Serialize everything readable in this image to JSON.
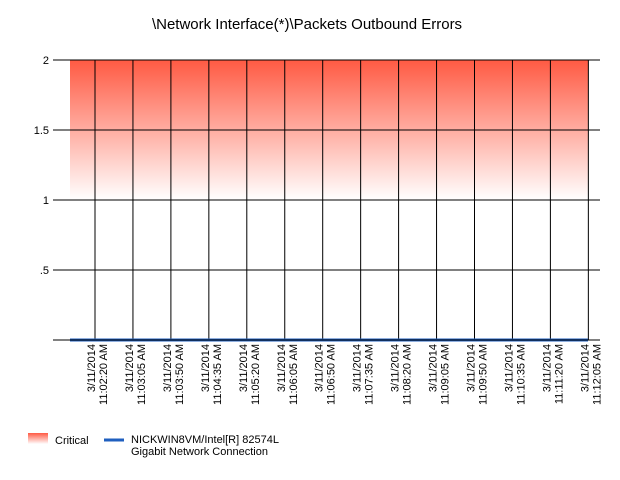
{
  "chart_data": {
    "type": "area",
    "title": "\\Network Interface(*)\\Packets Outbound Errors",
    "xlabel": "",
    "ylabel": "",
    "ylim": [
      0,
      2
    ],
    "y_ticks": [
      {
        "value": 2,
        "label": "2"
      },
      {
        "value": 1.5,
        "label": "1.5"
      },
      {
        "value": 1,
        "label": "1"
      },
      {
        "value": 0.5,
        "label": ".5"
      },
      {
        "value": 0,
        "label": ""
      }
    ],
    "categories": [
      "3/11/2014 11:02:20 AM",
      "3/11/2014 11:03:05 AM",
      "3/11/2014 11:03:50 AM",
      "3/11/2014 11:04:35 AM",
      "3/11/2014 11:05:20 AM",
      "3/11/2014 11:06:05 AM",
      "3/11/2014 11:06:50 AM",
      "3/11/2014 11:07:35 AM",
      "3/11/2014 11:08:20 AM",
      "3/11/2014 11:09:05 AM",
      "3/11/2014 11:09:50 AM",
      "3/11/2014 11:10:35 AM",
      "3/11/2014 11:11:20 AM",
      "3/11/2014 11:12:05 AM"
    ],
    "category_lines": [
      [
        "3/11/2014",
        "11:02:20 AM"
      ],
      [
        "3/11/2014",
        "11:03:05 AM"
      ],
      [
        "3/11/2014",
        "11:03:50 AM"
      ],
      [
        "3/11/2014",
        "11:04:35 AM"
      ],
      [
        "3/11/2014",
        "11:05:20 AM"
      ],
      [
        "3/11/2014",
        "11:06:05 AM"
      ],
      [
        "3/11/2014",
        "11:06:50 AM"
      ],
      [
        "3/11/2014",
        "11:07:35 AM"
      ],
      [
        "3/11/2014",
        "11:08:20 AM"
      ],
      [
        "3/11/2014",
        "11:09:05 AM"
      ],
      [
        "3/11/2014",
        "11:09:50 AM"
      ],
      [
        "3/11/2014",
        "11:10:35 AM"
      ],
      [
        "3/11/2014",
        "11:11:20 AM"
      ],
      [
        "3/11/2014",
        "11:12:05 AM"
      ]
    ],
    "series": [
      {
        "name": "Critical",
        "kind": "threshold-band",
        "from": 1,
        "to": 2,
        "color_top": "#ff5a43",
        "color_bottom": "#ffffff"
      },
      {
        "name": "NICKWIN8VM/Intel[R] 82574L Gigabit Network Connection",
        "name_lines": [
          "NICKWIN8VM/Intel[R] 82574L",
          "Gigabit Network Connection"
        ],
        "kind": "line",
        "color": "#1f5fbf",
        "values": [
          0,
          0,
          0,
          0,
          0,
          0,
          0,
          0,
          0,
          0,
          0,
          0,
          0,
          0
        ]
      }
    ],
    "grid": true,
    "legend_position": "bottom-left"
  }
}
